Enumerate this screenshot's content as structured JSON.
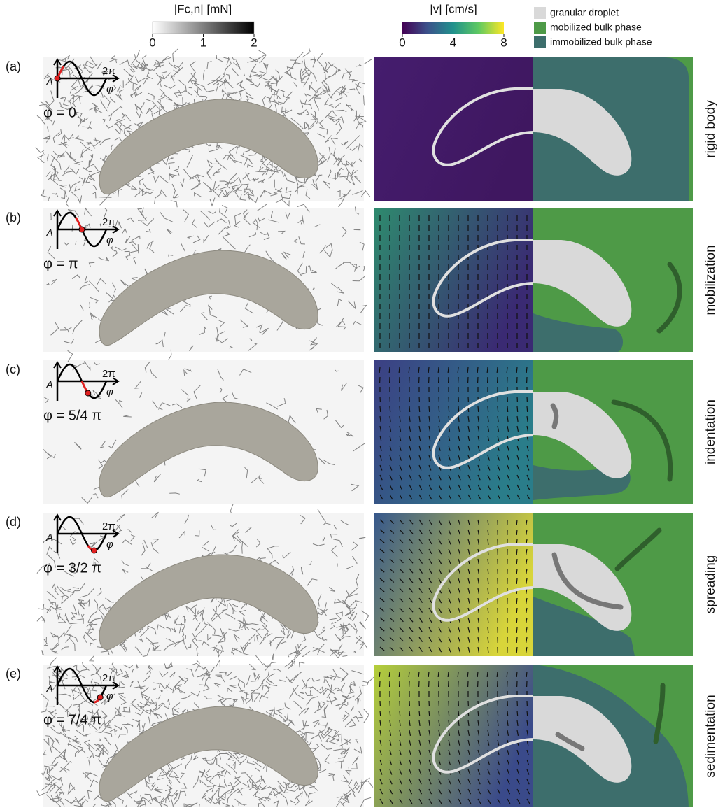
{
  "force_colorbar": {
    "title": "|Fc,n| [mN]",
    "ticks": [
      0,
      1,
      2
    ]
  },
  "velocity_colorbar": {
    "title": "|v| [cm/s]",
    "ticks": [
      0,
      4,
      8
    ]
  },
  "legend": [
    {
      "label": "granular droplet",
      "color": "#d9d9d9"
    },
    {
      "label": "mobilized bulk phase",
      "color": "#4e9a47"
    },
    {
      "label": "immobilized bulk phase",
      "color": "#3d6e6c"
    }
  ],
  "inset": {
    "amplitude": "A",
    "period": "2π",
    "axis": "φ"
  },
  "rows": [
    {
      "panel": "(a)",
      "phase": "φ = 0",
      "label": "rigid body"
    },
    {
      "panel": "(b)",
      "phase": "φ = π",
      "label": "mobilization"
    },
    {
      "panel": "(c)",
      "phase": "φ = 5/4 π",
      "label": "indentation"
    },
    {
      "panel": "(d)",
      "phase": "φ = 3/2 π",
      "label": "spreading"
    },
    {
      "panel": "(e)",
      "phase": "φ = 7/4 π",
      "label": "sedimentation"
    }
  ]
}
